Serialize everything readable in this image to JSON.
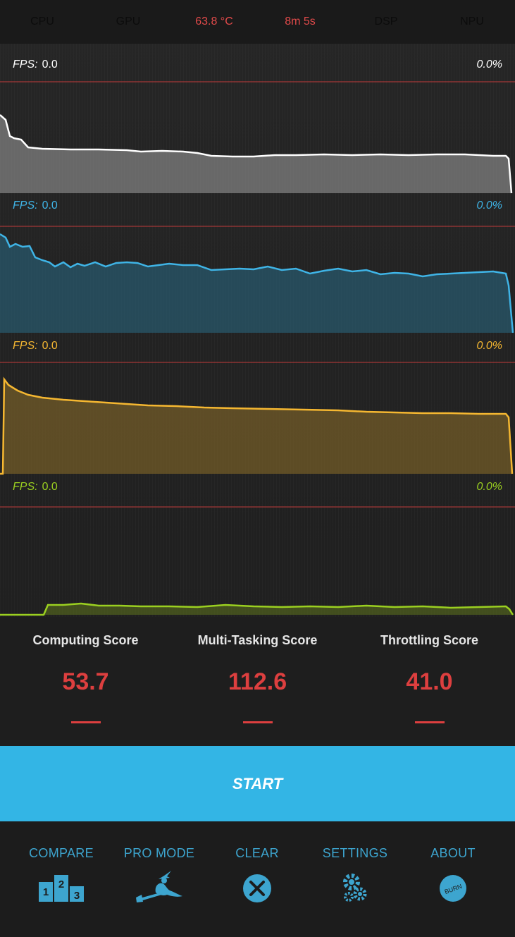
{
  "topbar": {
    "cpu": "CPU",
    "gpu": "GPU",
    "temperature": "63.8 °C",
    "elapsed": "8m 5s",
    "dsp": "DSP",
    "npu": "NPU"
  },
  "graphs": [
    {
      "fps_label": "FPS:",
      "fps_value": "0.0",
      "percent": "0.0%",
      "color": "#ffffff"
    },
    {
      "fps_label": "FPS:",
      "fps_value": "0.0",
      "percent": "0.0%",
      "color": "#3fb4e6"
    },
    {
      "fps_label": "FPS:",
      "fps_value": "0.0",
      "percent": "0.0%",
      "color": "#f5b731"
    },
    {
      "fps_label": "FPS:",
      "fps_value": "0.0",
      "percent": "0.0%",
      "color": "#9bd020"
    }
  ],
  "scores": {
    "computing": {
      "label": "Computing Score",
      "value": "53.7"
    },
    "multitasking": {
      "label": "Multi-Tasking Score",
      "value": "112.6"
    },
    "throttling": {
      "label": "Throttling Score",
      "value": "41.0"
    }
  },
  "start_label": "START",
  "nav": {
    "compare": "COMPARE",
    "pro_mode": "PRO MODE",
    "clear": "CLEAR",
    "settings": "SETTINGS",
    "about": "ABOUT",
    "about_badge": "BURN",
    "podium": [
      "2",
      "1",
      "3"
    ]
  },
  "colors": {
    "accent": "#33b5e5",
    "score_red": "#dd3f3f",
    "nav_blue": "#3da5cf"
  }
}
